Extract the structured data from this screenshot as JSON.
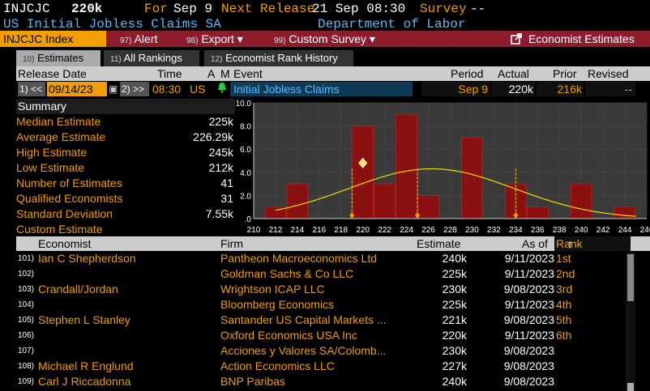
{
  "header": {
    "ticker": "INJCJC",
    "value": "220k",
    "for_label": "For",
    "for_date": "Sep 9",
    "next_release_label": "Next Release",
    "next_release": "21 Sep 08:30",
    "survey_label": "Survey",
    "survey_value": "--",
    "subtitle": "US Initial Jobless Claims SA",
    "source": "Department of Labor"
  },
  "menu": {
    "index_label": "INJCJC Index",
    "alert_num": "97)",
    "alert": "Alert",
    "export_num": "98)",
    "export": "Export ▾",
    "custom_num": "99)",
    "custom_survey": "Custom Survey ▾",
    "economist_estimates": "Economist Estimates"
  },
  "tabs": [
    {
      "num": "10)",
      "label": "Estimates"
    },
    {
      "num": "11)",
      "label": "All Rankings"
    },
    {
      "num": "12)",
      "label": "Economist Rank History"
    }
  ],
  "release_header": {
    "release_date": "Release Date",
    "time": "Time",
    "a": "A",
    "m": "M",
    "event": "Event",
    "period": "Period",
    "actual": "Actual",
    "prior": "Prior",
    "revised": "Revised"
  },
  "release_row": {
    "prev_btn": "1) <<",
    "date": "09/14/23",
    "next_btn": "2) >>",
    "time": "08:30",
    "country": "US",
    "event": "Initial Jobless Claims",
    "period": "Sep 9",
    "actual": "220k",
    "prior": "216k",
    "revised": "--"
  },
  "summary": {
    "title": "Summary",
    "rows": [
      {
        "label": "Median Estimate",
        "value": "225k"
      },
      {
        "label": "Average Estimate",
        "value": "226.29k"
      },
      {
        "label": "High Estimate",
        "value": "245k"
      },
      {
        "label": "Low Estimate",
        "value": "212k"
      },
      {
        "label": "Number of Estimates",
        "value": "41"
      },
      {
        "label": "Qualified Economists",
        "value": "31"
      },
      {
        "label": "Standard Deviation",
        "value": "7.55k"
      },
      {
        "label": "Custom Estimate",
        "value": ""
      }
    ]
  },
  "chart_data": {
    "type": "bar",
    "x_ticks": [
      210,
      212,
      214,
      216,
      218,
      220,
      222,
      224,
      226,
      228,
      230,
      232,
      234,
      236,
      238,
      240,
      242,
      244,
      246
    ],
    "y_ticks": [
      "10.0",
      "8.0",
      "6.0",
      "4.0",
      "2.0",
      ".0"
    ],
    "ylim": [
      0,
      10
    ],
    "xlim": [
      210,
      246
    ],
    "bars": [
      {
        "x": 212,
        "value": 1
      },
      {
        "x": 214,
        "value": 3
      },
      {
        "x": 220,
        "value": 8
      },
      {
        "x": 222,
        "value": 3
      },
      {
        "x": 224,
        "value": 9
      },
      {
        "x": 226,
        "value": 2
      },
      {
        "x": 230,
        "value": 7
      },
      {
        "x": 234,
        "value": 3
      },
      {
        "x": 236,
        "value": 1
      },
      {
        "x": 240,
        "value": 3
      },
      {
        "x": 244,
        "value": 1
      }
    ],
    "normal_curve": {
      "mean": 226.29,
      "std": 7.55,
      "peak": 4.3
    },
    "markers": {
      "actual": 220,
      "median": 225,
      "average": 226.29,
      "low_line": 219,
      "high_line": 234
    },
    "bar_color": "#8b1010",
    "curve_color": "#e8e000",
    "marker_color": "#f29d00"
  },
  "table": {
    "headers": {
      "economist": "Economist",
      "firm": "Firm",
      "estimate": "Estimate",
      "asof": "As of",
      "rank": "Rank",
      "sort": "↑"
    },
    "rows": [
      {
        "n": "101)",
        "economist": "Ian C Shepherdson",
        "firm": "Pantheon Macroeconomics Ltd",
        "estimate": "240k",
        "asof": "9/11/2023",
        "rank": "1st"
      },
      {
        "n": "102)",
        "economist": "",
        "firm": "Goldman Sachs & Co LLC",
        "estimate": "225k",
        "asof": "9/11/2023",
        "rank": "2nd"
      },
      {
        "n": "103)",
        "economist": "Crandall/Jordan",
        "firm": "Wrightson ICAP LLC",
        "estimate": "230k",
        "asof": "9/08/2023",
        "rank": "3rd"
      },
      {
        "n": "104)",
        "economist": "",
        "firm": "Bloomberg Economics",
        "estimate": "225k",
        "asof": "9/11/2023",
        "rank": "4th"
      },
      {
        "n": "105)",
        "economist": "Stephen L Stanley",
        "firm": "Santander US Capital Markets ...",
        "estimate": "221k",
        "asof": "9/08/2023",
        "rank": "5th"
      },
      {
        "n": "106)",
        "economist": "",
        "firm": "Oxford Economics USA Inc",
        "estimate": "220k",
        "asof": "9/11/2023",
        "rank": "6th"
      },
      {
        "n": "107)",
        "economist": "",
        "firm": "Acciones y Valores SA/Colomb...",
        "estimate": "230k",
        "asof": "9/08/2023",
        "rank": ""
      },
      {
        "n": "108)",
        "economist": "Michael R Englund",
        "firm": "Action Economics LLC",
        "estimate": "227k",
        "asof": "9/08/2023",
        "rank": ""
      },
      {
        "n": "109)",
        "economist": "Carl J Riccadonna",
        "firm": "BNP Paribas",
        "estimate": "240k",
        "asof": "9/08/2023",
        "rank": ""
      }
    ]
  }
}
